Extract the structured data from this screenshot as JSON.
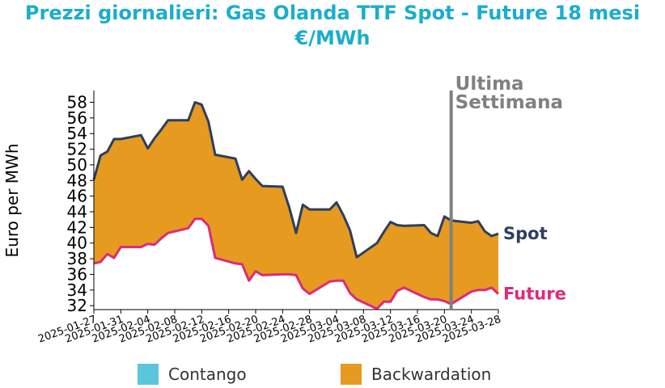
{
  "title_line1": "Prezzi giornalieri: Gas Olanda TTF Spot - Future 18 mesi",
  "title_line2": "€/MWh",
  "colors": {
    "title": "#1aadce",
    "spot": "#2d3e5f",
    "future": "#dd2a7b",
    "backwardation": "#e69a1f",
    "contango": "#5bc5dc",
    "marker": "#808080"
  },
  "legend": {
    "contango": "Contango",
    "backwardation": "Backwardation"
  },
  "marker_label_line1": "Ultima",
  "marker_label_line2": "Settimana",
  "chart_data": {
    "type": "area",
    "ylabel": "Euro per MWh",
    "xlabel": "",
    "ylim": [
      31.5,
      59.5
    ],
    "yticks": [
      32,
      34,
      36,
      38,
      40,
      42,
      44,
      46,
      48,
      50,
      52,
      54,
      56,
      58
    ],
    "xlim": [
      "2025-01-27",
      "2025-03-28"
    ],
    "xticks": [
      "2025-01-27",
      "2025-01-31",
      "2025-02-04",
      "2025-02-08",
      "2025-02-12",
      "2025-02-16",
      "2025-02-20",
      "2025-02-24",
      "2025-02-28",
      "2025-03-04",
      "2025-03-08",
      "2025-03-12",
      "2025-03-16",
      "2025-03-20",
      "2025-03-24",
      "2025-03-28"
    ],
    "marker_date": "2025-03-21",
    "x": [
      "2025-01-27",
      "2025-01-28",
      "2025-01-29",
      "2025-01-30",
      "2025-01-31",
      "2025-02-03",
      "2025-02-04",
      "2025-02-05",
      "2025-02-06",
      "2025-02-07",
      "2025-02-10",
      "2025-02-11",
      "2025-02-12",
      "2025-02-13",
      "2025-02-14",
      "2025-02-17",
      "2025-02-18",
      "2025-02-19",
      "2025-02-20",
      "2025-02-21",
      "2025-02-24",
      "2025-02-25",
      "2025-02-26",
      "2025-02-27",
      "2025-02-28",
      "2025-03-03",
      "2025-03-04",
      "2025-03-05",
      "2025-03-06",
      "2025-03-07",
      "2025-03-10",
      "2025-03-11",
      "2025-03-12",
      "2025-03-13",
      "2025-03-14",
      "2025-03-17",
      "2025-03-18",
      "2025-03-19",
      "2025-03-20",
      "2025-03-21",
      "2025-03-24",
      "2025-03-25",
      "2025-03-26",
      "2025-03-27",
      "2025-03-28"
    ],
    "series": [
      {
        "name": "Spot",
        "values": [
          48.1,
          51.2,
          51.7,
          53.3,
          53.3,
          53.8,
          52.1,
          53.4,
          54.5,
          55.7,
          55.7,
          58.0,
          57.7,
          55.5,
          51.3,
          50.8,
          48.1,
          49.2,
          48.2,
          47.3,
          47.2,
          44.5,
          41.3,
          44.9,
          44.3,
          44.3,
          45.2,
          43.6,
          41.6,
          38.2,
          40.0,
          41.4,
          42.7,
          42.3,
          42.2,
          42.3,
          41.3,
          40.9,
          43.4,
          42.9,
          42.6,
          42.8,
          41.5,
          40.9,
          41.2
        ]
      },
      {
        "name": "Future",
        "values": [
          37.4,
          37.6,
          38.6,
          38.1,
          39.5,
          39.5,
          39.9,
          39.8,
          40.6,
          41.3,
          41.9,
          43.1,
          43.1,
          42.2,
          38.1,
          37.4,
          37.3,
          35.2,
          36.4,
          35.9,
          36.0,
          36.0,
          35.9,
          34.2,
          33.5,
          35.1,
          35.2,
          35.2,
          33.6,
          32.8,
          31.6,
          32.5,
          32.5,
          33.9,
          34.3,
          33.1,
          32.8,
          32.8,
          32.6,
          32.2,
          33.8,
          34.0,
          34.0,
          34.3,
          33.5
        ]
      }
    ]
  }
}
